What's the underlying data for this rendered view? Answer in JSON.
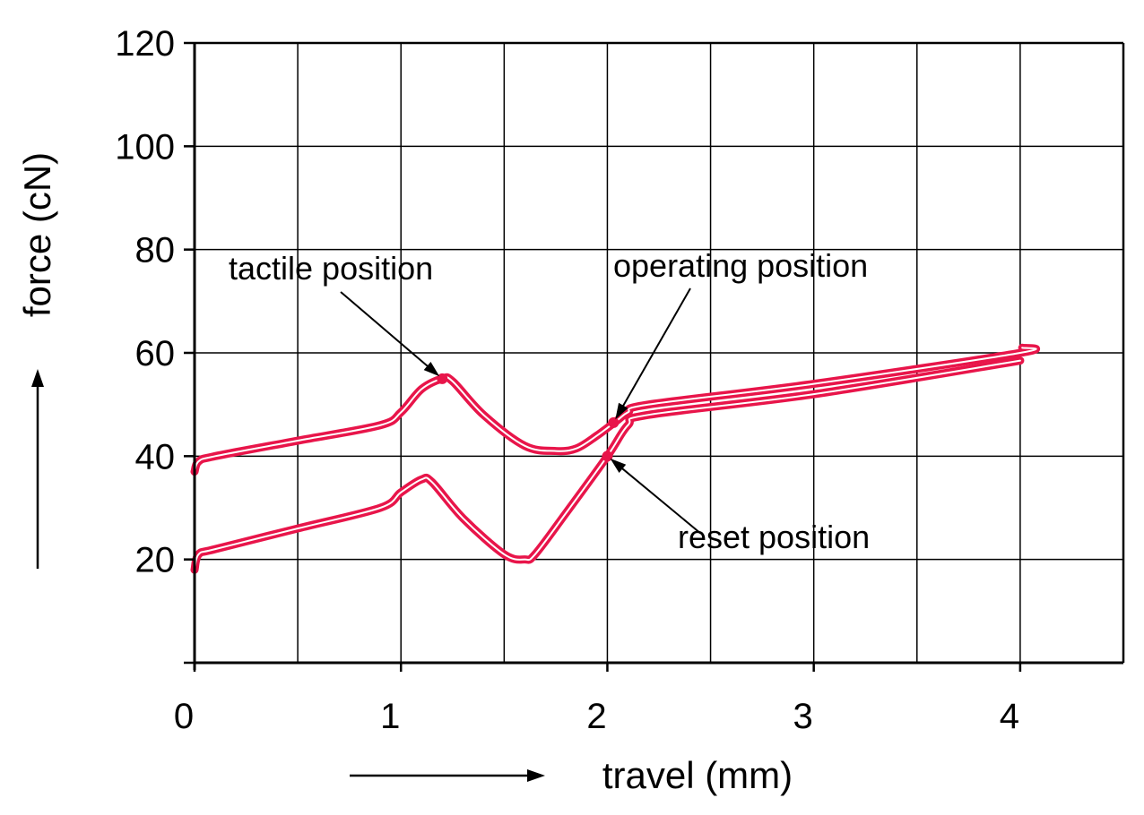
{
  "chart_data": {
    "type": "line",
    "xlabel": "travel (mm)",
    "ylabel": "force (cN)",
    "xlim": [
      0,
      4.5
    ],
    "ylim": [
      0,
      120
    ],
    "x_ticks": [
      0,
      1,
      2,
      3,
      4
    ],
    "y_ticks": [
      20,
      40,
      60,
      80,
      100,
      120
    ],
    "x_grid_step": 0.5,
    "y_grid_step": 20,
    "grid": true,
    "line_color": "#e8154a",
    "series": [
      {
        "x": [
          0.0,
          0.02,
          0.1,
          0.5,
          0.9,
          1.0,
          1.1,
          1.2,
          1.25,
          1.4,
          1.6,
          1.75,
          1.85,
          1.95,
          2.05,
          2.1,
          2.2,
          3.0,
          4.0,
          4.01
        ],
        "y": [
          37,
          39,
          40,
          43,
          46,
          48.5,
          53,
          55,
          54.5,
          48,
          42,
          41,
          41.5,
          44,
          47,
          48.5,
          50,
          54,
          60,
          61
        ]
      },
      {
        "x": [
          0.0,
          0.02,
          0.1,
          0.5,
          0.9,
          1.0,
          1.1,
          1.15,
          1.3,
          1.5,
          1.6,
          1.65,
          1.8,
          2.0,
          2.1,
          2.2,
          3.0,
          4.0
        ],
        "y": [
          18,
          21,
          22,
          26,
          30,
          33,
          35.5,
          35,
          28,
          21,
          20,
          21,
          29,
          40,
          46,
          48,
          52,
          58.5
        ]
      }
    ],
    "annotations": [
      {
        "text": "tactile position",
        "x": 1.2,
        "y": 55
      },
      {
        "text": "operating position",
        "x": 2.03,
        "y": 46.5
      },
      {
        "text": "reset position",
        "x": 2.0,
        "y": 40
      }
    ]
  }
}
